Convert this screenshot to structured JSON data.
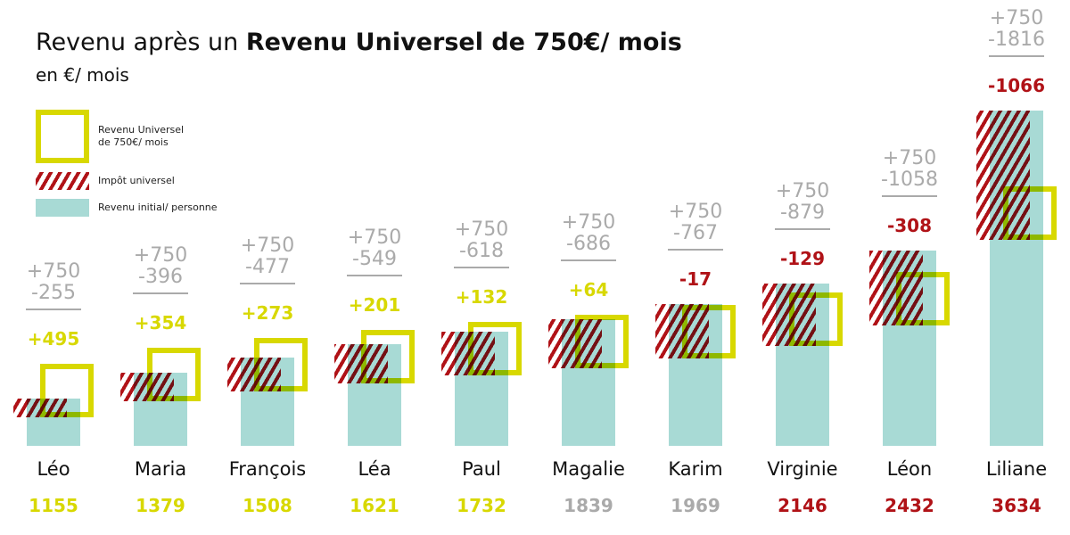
{
  "chart_data": {
    "type": "bar",
    "title_plain": "Revenu après un ",
    "title_bold": "Revenu Universel de 750€/ mois",
    "subtitle": "en €/ mois",
    "legend": {
      "placement": "top-left",
      "universal_income": "Revenu Universel\nde 750€/ mois",
      "universal_tax": "Impôt universel",
      "initial_income": "Revenu initial/ personne"
    },
    "universal_income_label": "+750",
    "universal_income_value": 750,
    "categories": [
      "Léo",
      "Maria",
      "François",
      "Léa",
      "Paul",
      "Magalie",
      "Karim",
      "Virginie",
      "Léon",
      "Liliane"
    ],
    "initial_income": [
      660,
      1025,
      1235,
      1420,
      1600,
      1775,
      1986,
      2275,
      2740,
      4700
    ],
    "tax_labels": [
      "-255",
      "-396",
      "-477",
      "-549",
      "-618",
      "-686",
      "-767",
      "-879",
      "-1058",
      "-1816"
    ],
    "tax": [
      255,
      396,
      477,
      549,
      618,
      686,
      767,
      879,
      1058,
      1816
    ],
    "net_labels": [
      "+495",
      "+354",
      "+273",
      "+201",
      "+132",
      "+64",
      "-17",
      "-129",
      "-308",
      "-1066"
    ],
    "final_income": [
      "1155",
      "1379",
      "1508",
      "1621",
      "1732",
      "1839",
      "1969",
      "2146",
      "2432",
      "3634"
    ],
    "final_colors": [
      "#d8d800",
      "#d8d800",
      "#d8d800",
      "#d8d800",
      "#d8d800",
      "#aaaaaa",
      "#aaaaaa",
      "#b01217",
      "#b01217",
      "#b01217"
    ],
    "colors": {
      "initial": "#a8dad5",
      "universal": "#d8d800",
      "tax": "#b01217",
      "gain": "#d8d800",
      "loss": "#b01217",
      "label": "#aaaaaa"
    }
  }
}
